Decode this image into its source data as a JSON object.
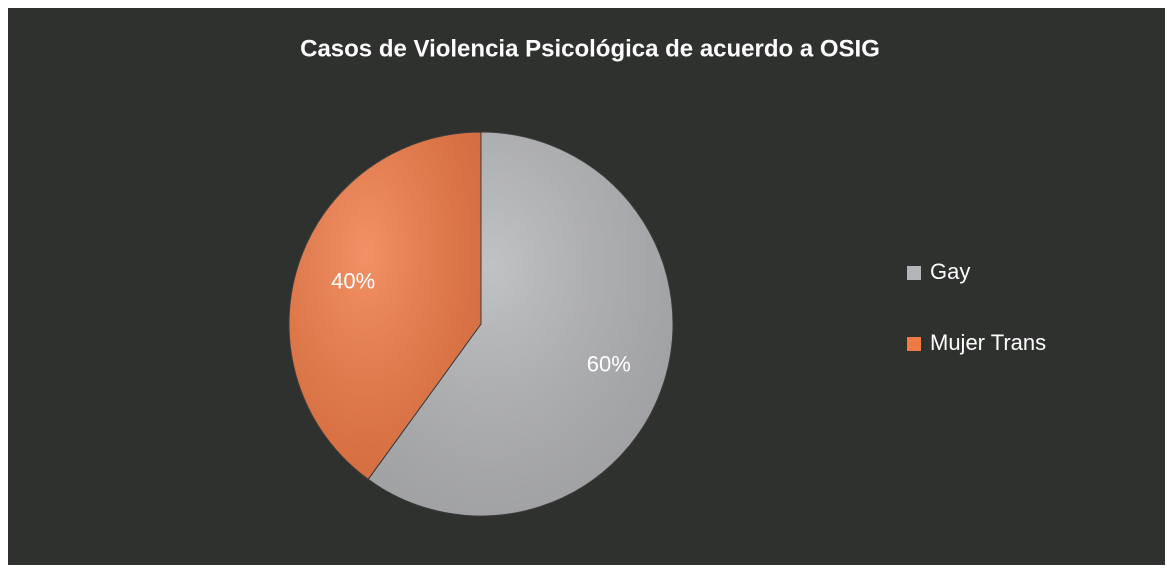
{
  "chart_data": {
    "type": "pie",
    "title": "Casos de Violencia Psicológica de acuerdo a OSIG",
    "categories": [
      "Gay",
      "Mujer Trans"
    ],
    "values": [
      60,
      40
    ],
    "value_labels": [
      "60%",
      "40%"
    ],
    "colors": [
      "#b4b5b8",
      "#f07a45"
    ],
    "legend": "right"
  }
}
